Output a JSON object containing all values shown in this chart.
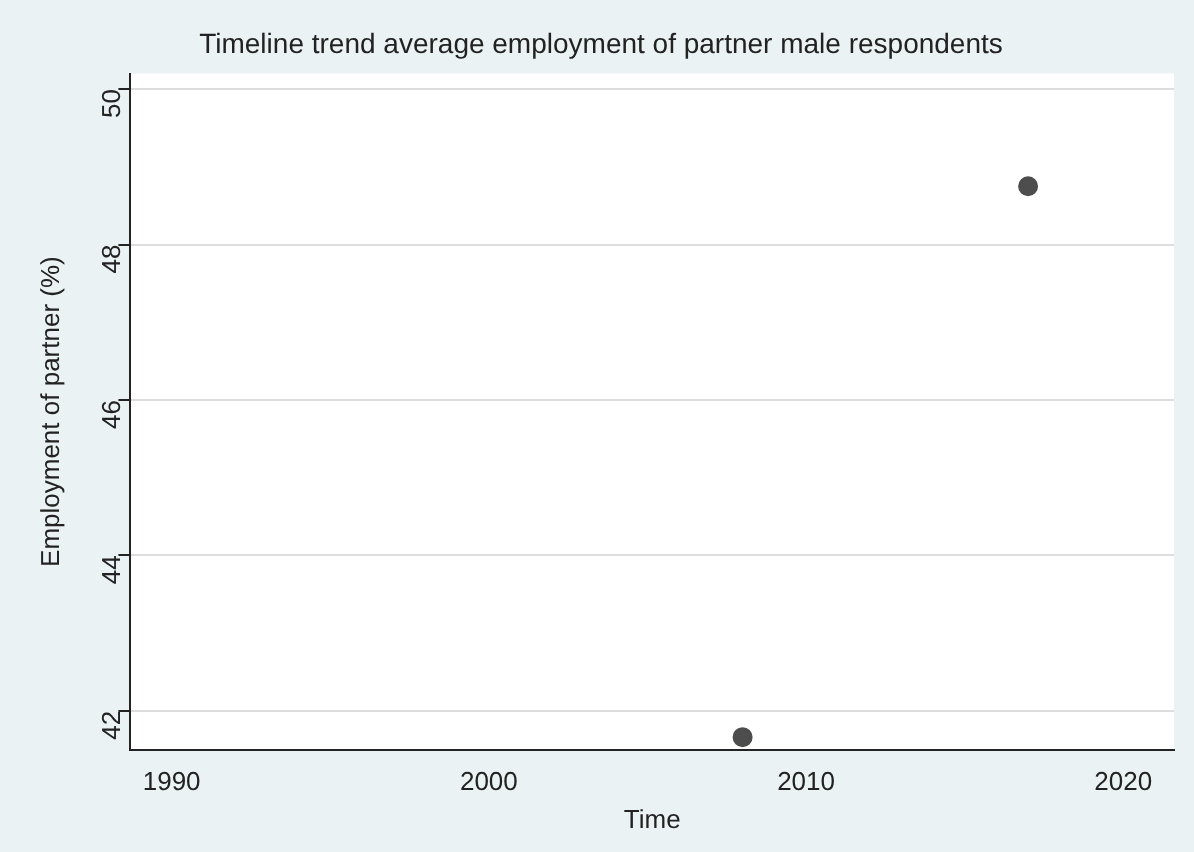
{
  "chart_data": {
    "type": "scatter",
    "title": "Timeline trend average employment of partner male respondents",
    "xlabel": "Time",
    "ylabel": "Employment of partner (%)",
    "x": [
      2008,
      2017
    ],
    "series": [
      {
        "color": "#4d4d4d",
        "values": [
          41.66,
          48.75
        ]
      }
    ],
    "xlim": [
      1988.7,
      2021.6
    ],
    "xticks": [
      1990,
      2000,
      2010,
      2020
    ],
    "ylim": [
      41.5,
      50.2
    ],
    "yticks": [
      42,
      44,
      46,
      48,
      50
    ],
    "grid": "y",
    "marker": "circle",
    "legend": false
  }
}
